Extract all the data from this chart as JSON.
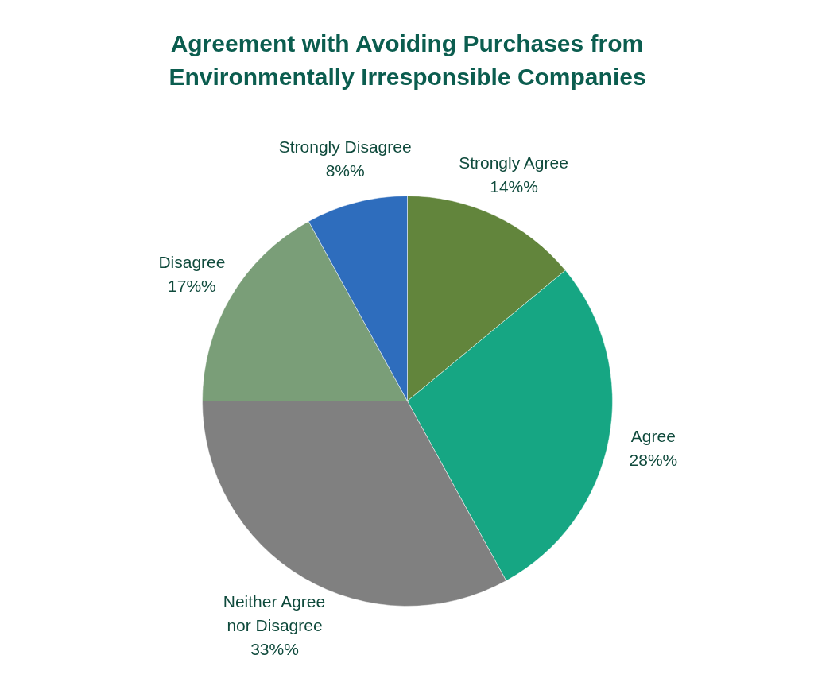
{
  "chart_data": {
    "type": "pie",
    "title": "Agreement with Avoiding Purchases from Environmentally Irresponsible Companies",
    "categories": [
      "Strongly Agree",
      "Agree",
      "Neither Agree nor Disagree",
      "Disagree",
      "Strongly Disagree"
    ],
    "values": [
      14,
      28,
      33,
      17,
      8
    ],
    "colors": [
      "#62853c",
      "#16a683",
      "#808080",
      "#7a9e78",
      "#2e6dbd"
    ],
    "value_labels": [
      "14%%",
      "28%%",
      "33%%",
      "17%%",
      "8%%"
    ]
  }
}
